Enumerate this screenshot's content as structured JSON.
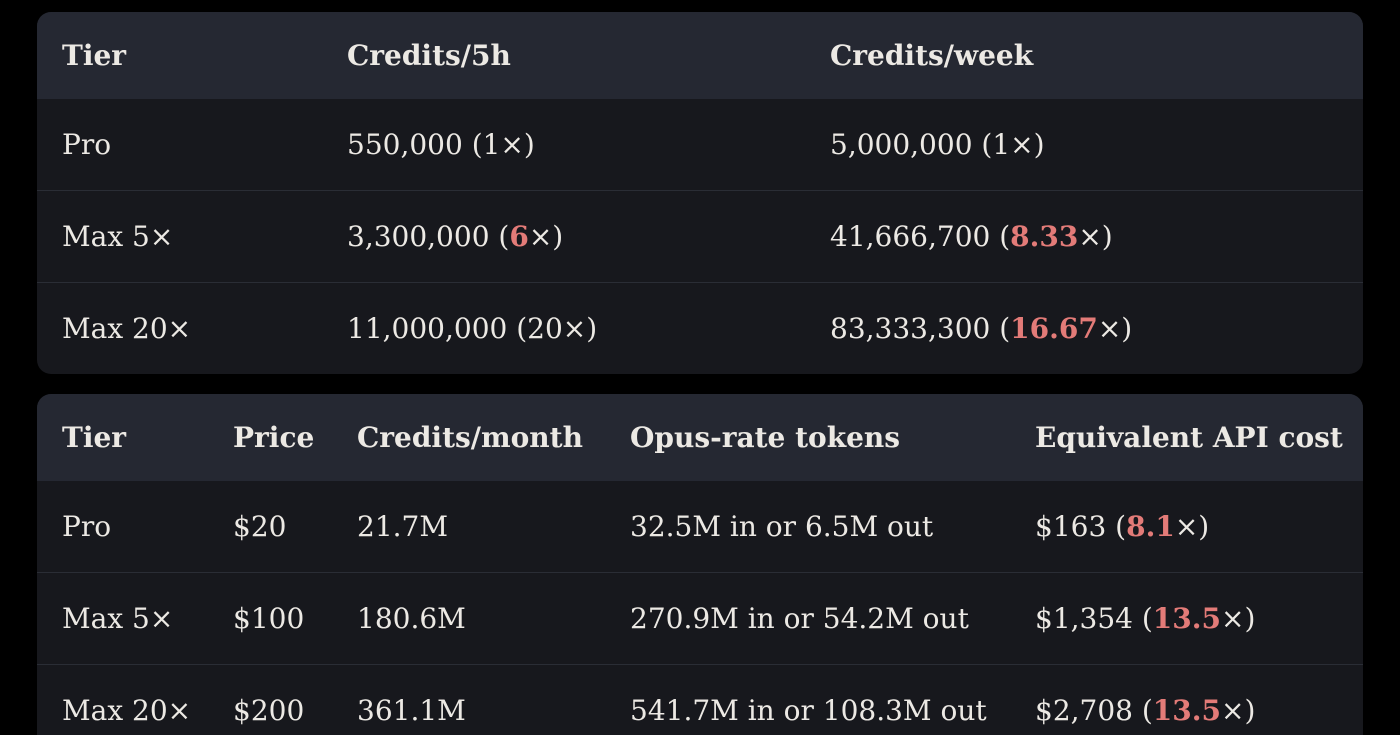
{
  "theme": {
    "page_bg": "#000000",
    "header_bg": "#252832",
    "row_bg": "#17181d",
    "divider": "#2a2d35",
    "text": "#ece9e4",
    "accent": "#e37b78"
  },
  "tables": [
    {
      "name": "credit-limits-table",
      "headers": [
        "Tier",
        "Credits/5h",
        "Credits/week"
      ],
      "rows": [
        [
          [
            {
              "t": "Pro"
            }
          ],
          [
            {
              "t": "550,000 (1×)"
            }
          ],
          [
            {
              "t": "5,000,000 (1×)"
            }
          ]
        ],
        [
          [
            {
              "t": "Max 5×"
            }
          ],
          [
            {
              "t": "3,300,000 ("
            },
            {
              "t": "6",
              "accent": true
            },
            {
              "t": "×)"
            }
          ],
          [
            {
              "t": "41,666,700 ("
            },
            {
              "t": "8.33",
              "accent": true
            },
            {
              "t": "×)"
            }
          ]
        ],
        [
          [
            {
              "t": "Max 20×"
            }
          ],
          [
            {
              "t": "11,000,000 (20×)"
            }
          ],
          [
            {
              "t": "83,333,300 ("
            },
            {
              "t": "16.67",
              "accent": true
            },
            {
              "t": "×)"
            }
          ]
        ]
      ]
    },
    {
      "name": "pricing-table",
      "headers": [
        "Tier",
        "Price",
        "Credits/month",
        "Opus-rate tokens",
        "Equivalent API cost"
      ],
      "rows": [
        [
          [
            {
              "t": "Pro"
            }
          ],
          [
            {
              "t": "$20"
            }
          ],
          [
            {
              "t": "21.7M"
            }
          ],
          [
            {
              "t": "32.5M in or 6.5M out"
            }
          ],
          [
            {
              "t": "$163 ("
            },
            {
              "t": "8.1",
              "accent": true
            },
            {
              "t": "×)"
            }
          ]
        ],
        [
          [
            {
              "t": "Max 5×"
            }
          ],
          [
            {
              "t": "$100"
            }
          ],
          [
            {
              "t": "180.6M"
            }
          ],
          [
            {
              "t": "270.9M in or 54.2M out"
            }
          ],
          [
            {
              "t": "$1,354 ("
            },
            {
              "t": "13.5",
              "accent": true
            },
            {
              "t": "×)"
            }
          ]
        ],
        [
          [
            {
              "t": "Max 20×"
            }
          ],
          [
            {
              "t": "$200"
            }
          ],
          [
            {
              "t": "361.1M"
            }
          ],
          [
            {
              "t": "541.7M in or 108.3M out"
            }
          ],
          [
            {
              "t": "$2,708 ("
            },
            {
              "t": "13.5",
              "accent": true
            },
            {
              "t": "×)"
            }
          ]
        ]
      ]
    }
  ]
}
